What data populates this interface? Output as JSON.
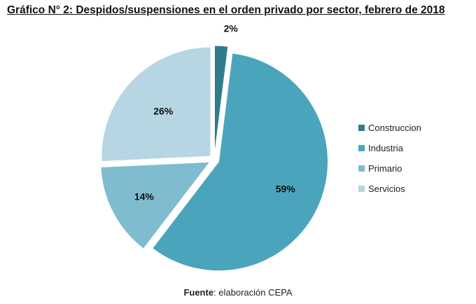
{
  "chart_data": {
    "type": "pie",
    "title": "Gráfico N° 2: Despidos/suspensiones en el orden privado por sector, febrero de 2018",
    "categories": [
      "Construccion",
      "Industria",
      "Primario",
      "Servicios"
    ],
    "values": [
      2,
      59,
      14,
      26
    ],
    "labels": [
      "2%",
      "59%",
      "14%",
      "26%"
    ],
    "colors": [
      "#2e7d8c",
      "#4aa5bc",
      "#7fbcd0",
      "#b5d6e2"
    ],
    "exploded": true,
    "legend_position": "right"
  },
  "source": {
    "label": "Fuente",
    "text": ": elaboración CEPA"
  }
}
